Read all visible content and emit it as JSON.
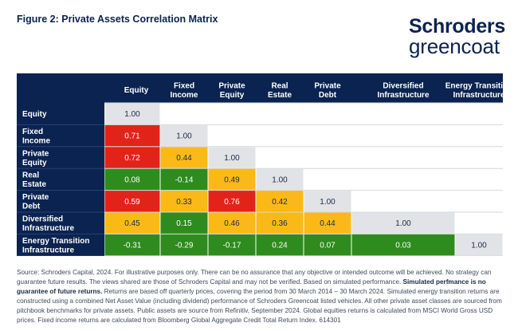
{
  "figure_title": "Figure 2: Private Assets Correlation Matrix",
  "logo": {
    "line1": "Schroders",
    "line2": "greencoat"
  },
  "colors": {
    "header_bg": "#0b2350",
    "strong_red": "#e2231a",
    "moderate_amber": "#fbb917",
    "low_green": "#2e8b1e",
    "diagonal_grey": "#e2e3e6",
    "grid_line": "#d6d8dc"
  },
  "chart_data": {
    "type": "heatmap",
    "columns": [
      [
        "Equity"
      ],
      [
        "Fixed",
        "Income"
      ],
      [
        "Private",
        "Equity"
      ],
      [
        "Real",
        "Estate"
      ],
      [
        "Private",
        "Debt"
      ],
      [
        "Diversified",
        "Infrastructure"
      ],
      [
        "Energy Transition",
        "Infrastructure"
      ]
    ],
    "rows": [
      [
        "Equity"
      ],
      [
        "Fixed",
        "Income"
      ],
      [
        "Private",
        "Equity"
      ],
      [
        "Real",
        "Estate"
      ],
      [
        "Private",
        "Debt"
      ],
      [
        "Diversified",
        "Infrastructure"
      ],
      [
        "Energy Transition",
        "Infrastructure"
      ]
    ],
    "values": [
      [
        "1.00"
      ],
      [
        "0.71",
        "1.00"
      ],
      [
        "0.72",
        "0.44",
        "1.00"
      ],
      [
        "0.08",
        "-0.14",
        "0.49",
        "1.00"
      ],
      [
        "0.59",
        "0.33",
        "0.76",
        "0.42",
        "1.00"
      ],
      [
        "0.45",
        "0.15",
        "0.46",
        "0.36",
        "0.44",
        "1.00"
      ],
      [
        "-0.31",
        "-0.29",
        "-0.17",
        "0.24",
        "0.07",
        "0.03",
        "1.00"
      ]
    ],
    "cell_colors": [
      [
        "diagonal_grey"
      ],
      [
        "strong_red",
        "diagonal_grey"
      ],
      [
        "strong_red",
        "moderate_amber",
        "diagonal_grey"
      ],
      [
        "low_green",
        "low_green",
        "moderate_amber",
        "diagonal_grey"
      ],
      [
        "strong_red",
        "moderate_amber",
        "strong_red",
        "moderate_amber",
        "diagonal_grey"
      ],
      [
        "moderate_amber",
        "low_green",
        "moderate_amber",
        "moderate_amber",
        "moderate_amber",
        "diagonal_grey"
      ],
      [
        "low_green",
        "low_green",
        "low_green",
        "low_green",
        "low_green",
        "low_green",
        "diagonal_grey"
      ]
    ]
  },
  "source_note": {
    "part1": "Source: Schroders Capital, 2024. For illustrative purposes only. There can be no assurance that any objective or intended outcome will be achieved. No strategy can guarantee future results. The views shared are those of Schroders Capital and may not be verified. Based on simulated performance. ",
    "bold": "Simulated perfmance is no guarantee of future returns.",
    "part2": " Returns are based off quarterly prices, covering the period from 30 March 2014 – 30 March 2024. Simulated energy transition returns are constructed using a combined Net Asset Value (including dividend) performance of Schroders Greencoat listed vehicles. All other private asset classes are sourced from pitchbook benchmarks for private assets. Public assets are source from Refinitiv, September 2024. Global equities returns is calculated from MSCI World Gross USD prices. Fixed income returns are calculated from Bloomberg Global Aggregate Credit Total Return Index. 614301"
  }
}
